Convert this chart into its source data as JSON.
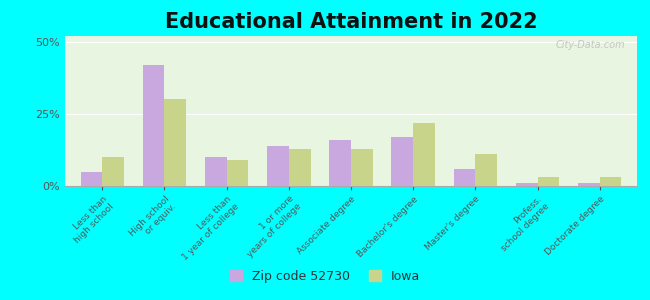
{
  "title": "Educational Attainment in 2022",
  "categories": [
    "Less than\nhigh school",
    "High school\nor equiv.",
    "Less than\n1 year of college",
    "1 or more\nyears of college",
    "Associate degree",
    "Bachelor's degree",
    "Master's degree",
    "Profess.\nschool degree",
    "Doctorate degree"
  ],
  "zip_values": [
    5,
    42,
    10,
    14,
    16,
    17,
    6,
    1,
    1
  ],
  "iowa_values": [
    10,
    30,
    9,
    13,
    13,
    22,
    11,
    3,
    3
  ],
  "zip_color": "#c9a8e0",
  "iowa_color": "#c8d48a",
  "zip_label": "Zip code 52730",
  "iowa_label": "Iowa",
  "background_color": "#e8f5e0",
  "outer_background": "#00ffff",
  "yticks": [
    0,
    25,
    50
  ],
  "ytick_labels": [
    "0%",
    "25%",
    "50%"
  ],
  "ylim": [
    0,
    52
  ],
  "bar_width": 0.35,
  "title_fontsize": 15,
  "tick_fontsize": 6.5,
  "legend_fontsize": 9,
  "watermark": "City-Data.com"
}
